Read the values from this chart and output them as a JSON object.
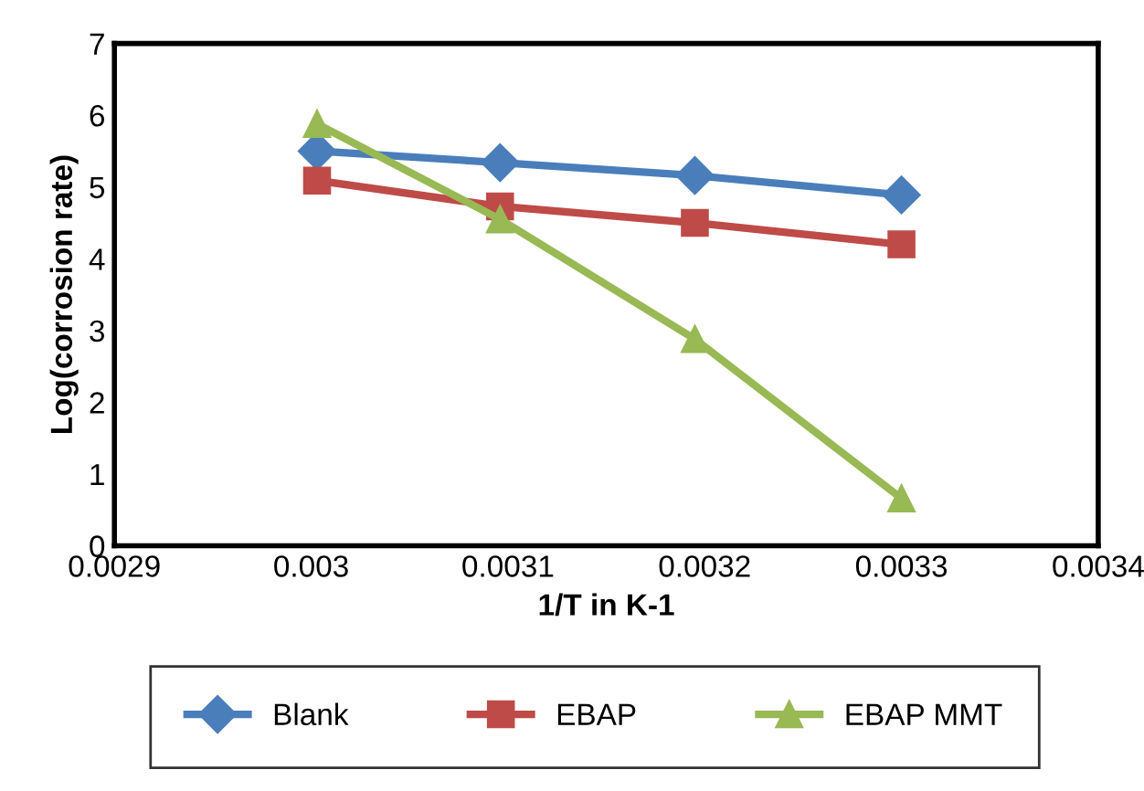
{
  "chart_data": {
    "type": "line",
    "xlabel": "1/T in K-1",
    "ylabel": "Log(corrosion rate)",
    "x": [
      0.003003,
      0.003096,
      0.003195,
      0.0033
    ],
    "series": [
      {
        "name": "Blank",
        "color": "#4a7ebb",
        "marker": "diamond",
        "values": [
          5.5,
          5.34,
          5.16,
          4.89
        ]
      },
      {
        "name": "EBAP",
        "color": "#be4b48",
        "marker": "square",
        "values": [
          5.09,
          4.73,
          4.5,
          4.2
        ]
      },
      {
        "name": "EBAP MMT",
        "color": "#98b954",
        "marker": "triangle",
        "values": [
          5.88,
          4.55,
          2.88,
          0.66
        ]
      }
    ],
    "xlim": [
      0.0029,
      0.0034
    ],
    "xticks": [
      0.0029,
      0.003,
      0.0031,
      0.0032,
      0.0033,
      0.0034
    ],
    "ylim": [
      0,
      7
    ],
    "yticks": [
      0,
      1,
      2,
      3,
      4,
      5,
      6,
      7
    ],
    "grid": false,
    "legend": "bottom",
    "line_style": "solid"
  }
}
